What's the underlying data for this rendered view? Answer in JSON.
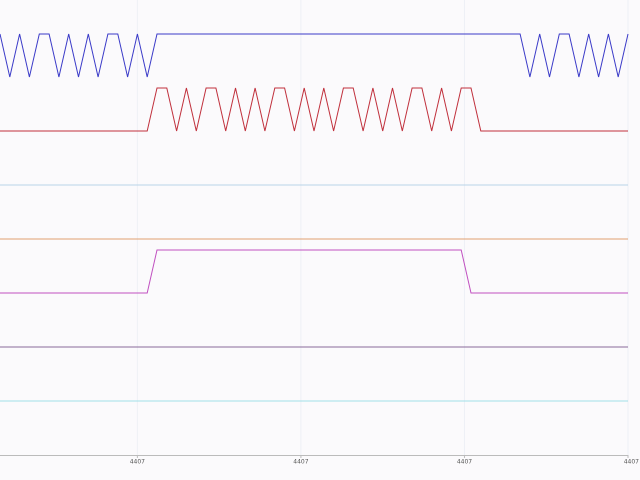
{
  "chart_data": {
    "type": "line",
    "x": [
      0.16,
      0.22,
      0.28,
      0.34,
      0.4,
      0.46,
      0.52,
      0.58,
      0.64,
      0.7,
      0.76,
      0.82,
      0.88,
      0.94,
      1.0,
      1.06,
      1.12,
      1.18,
      1.24,
      1.3,
      1.36,
      1.42,
      1.48,
      1.54,
      1.6,
      1.66,
      1.72,
      1.78,
      1.84,
      1.9,
      1.96,
      2.02,
      2.08,
      2.14,
      2.2,
      2.26,
      2.32,
      2.38,
      2.44,
      2.5,
      2.56,
      2.62,
      2.68,
      2.74,
      2.8,
      2.86,
      2.92,
      2.98,
      3.04,
      3.1,
      3.16,
      3.22,
      3.28,
      3.34,
      3.4,
      3.46,
      3.52,
      3.58,
      3.64,
      3.7,
      3.76,
      3.82,
      3.88,
      3.94,
      4.0
    ],
    "xlim": [
      0.16,
      4.0
    ],
    "xticks": [
      {
        "value": 1,
        "label": "4407"
      },
      {
        "value": 2,
        "label": "4407"
      },
      {
        "value": 3,
        "label": "4407"
      },
      {
        "value": 4,
        "label": "4407"
      }
    ],
    "ylim": [
      0,
      1
    ],
    "grid": true,
    "series": [
      {
        "color": "#3b3bc8",
        "values": [
          1,
          0,
          1,
          0,
          1,
          1,
          0,
          1,
          0,
          1,
          0,
          1,
          1,
          0,
          1,
          0,
          1,
          1,
          1,
          1,
          1,
          1,
          1,
          1,
          1,
          1,
          1,
          1,
          1,
          1,
          1,
          1,
          1,
          1,
          1,
          1,
          1,
          1,
          1,
          1,
          1,
          1,
          1,
          1,
          1,
          1,
          1,
          1,
          1,
          1,
          1,
          1,
          1,
          1,
          0,
          1,
          0,
          1,
          1,
          0,
          1,
          0,
          1,
          0,
          1
        ]
      },
      {
        "color": "#c0303c",
        "values": [
          0,
          0,
          0,
          0,
          0,
          0,
          0,
          0,
          0,
          0,
          0,
          0,
          0,
          0,
          0,
          0,
          1,
          1,
          0,
          1,
          0,
          1,
          1,
          0,
          1,
          0,
          1,
          0,
          1,
          1,
          0,
          1,
          0,
          1,
          0,
          1,
          1,
          0,
          1,
          0,
          1,
          0,
          1,
          1,
          0,
          1,
          0,
          1,
          1,
          0,
          0,
          0,
          0,
          0,
          0,
          0,
          0,
          0,
          0,
          0,
          0,
          0,
          0,
          0,
          0
        ]
      },
      {
        "color": "#b8d4e8",
        "values": [
          0,
          0,
          0,
          0,
          0,
          0,
          0,
          0,
          0,
          0,
          0,
          0,
          0,
          0,
          0,
          0,
          0,
          0,
          0,
          0,
          0,
          0,
          0,
          0,
          0,
          0,
          0,
          0,
          0,
          0,
          0,
          0,
          0,
          0,
          0,
          0,
          0,
          0,
          0,
          0,
          0,
          0,
          0,
          0,
          0,
          0,
          0,
          0,
          0,
          0,
          0,
          0,
          0,
          0,
          0,
          0,
          0,
          0,
          0,
          0,
          0,
          0,
          0,
          0,
          0
        ]
      },
      {
        "color": "#e0a070",
        "values": [
          0,
          0,
          0,
          0,
          0,
          0,
          0,
          0,
          0,
          0,
          0,
          0,
          0,
          0,
          0,
          0,
          0,
          0,
          0,
          0,
          0,
          0,
          0,
          0,
          0,
          0,
          0,
          0,
          0,
          0,
          0,
          0,
          0,
          0,
          0,
          0,
          0,
          0,
          0,
          0,
          0,
          0,
          0,
          0,
          0,
          0,
          0,
          0,
          0,
          0,
          0,
          0,
          0,
          0,
          0,
          0,
          0,
          0,
          0,
          0,
          0,
          0,
          0,
          0,
          0
        ]
      },
      {
        "color": "#c050c0",
        "values": [
          0,
          0,
          0,
          0,
          0,
          0,
          0,
          0,
          0,
          0,
          0,
          0,
          0,
          0,
          0,
          0,
          1,
          1,
          1,
          1,
          1,
          1,
          1,
          1,
          1,
          1,
          1,
          1,
          1,
          1,
          1,
          1,
          1,
          1,
          1,
          1,
          1,
          1,
          1,
          1,
          1,
          1,
          1,
          1,
          1,
          1,
          1,
          1,
          0,
          0,
          0,
          0,
          0,
          0,
          0,
          0,
          0,
          0,
          0,
          0,
          0,
          0,
          0,
          0,
          0
        ]
      },
      {
        "color": "#8a6a9a",
        "values": [
          0,
          0,
          0,
          0,
          0,
          0,
          0,
          0,
          0,
          0,
          0,
          0,
          0,
          0,
          0,
          0,
          0,
          0,
          0,
          0,
          0,
          0,
          0,
          0,
          0,
          0,
          0,
          0,
          0,
          0,
          0,
          0,
          0,
          0,
          0,
          0,
          0,
          0,
          0,
          0,
          0,
          0,
          0,
          0,
          0,
          0,
          0,
          0,
          0,
          0,
          0,
          0,
          0,
          0,
          0,
          0,
          0,
          0,
          0,
          0,
          0,
          0,
          0,
          0,
          0
        ]
      },
      {
        "color": "#a0e0e8",
        "values": [
          0,
          0,
          0,
          0,
          0,
          0,
          0,
          0,
          0,
          0,
          0,
          0,
          0,
          0,
          0,
          0,
          0,
          0,
          0,
          0,
          0,
          0,
          0,
          0,
          0,
          0,
          0,
          0,
          0,
          0,
          0,
          0,
          0,
          0,
          0,
          0,
          0,
          0,
          0,
          0,
          0,
          0,
          0,
          0,
          0,
          0,
          0,
          0,
          0,
          0,
          0,
          0,
          0,
          0,
          0,
          0,
          0,
          0,
          0,
          0,
          0,
          0,
          0,
          0,
          0
        ]
      }
    ]
  }
}
